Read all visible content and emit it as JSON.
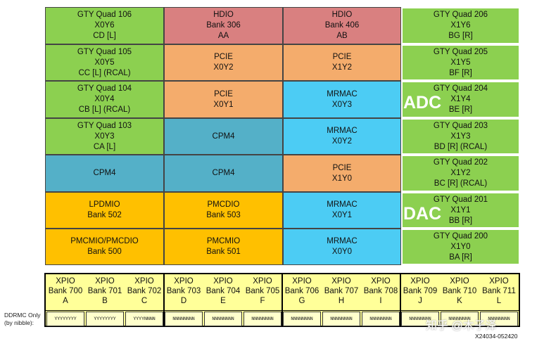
{
  "colors": {
    "gty": "#8cd050",
    "hdio": "#d98080",
    "pcie": "#f4ac6c",
    "mrmac": "#4cccf4",
    "cpm": "#54b0c8",
    "lpdmio": "#ffc000",
    "xpio": "#ffff99"
  },
  "grid": {
    "col0": [
      {
        "lines": [
          "GTY Quad 106",
          "X0Y6",
          "CD [L]"
        ],
        "type": "gty"
      },
      {
        "lines": [
          "GTY Quad 105",
          "X0Y5",
          "CC [L] (RCAL)"
        ],
        "type": "gty"
      },
      {
        "lines": [
          "GTY Quad 104",
          "X0Y4",
          "CB [L] (RCAL)"
        ],
        "type": "gty"
      },
      {
        "lines": [
          "GTY Quad 103",
          "X0Y3",
          "CA [L]"
        ],
        "type": "gty"
      },
      {
        "lines": [
          "CPM4"
        ],
        "type": "cpm"
      },
      {
        "lines": [
          "LPDMIO",
          "Bank 502"
        ],
        "type": "lpdmio"
      },
      {
        "lines": [
          "PMCMIO/PMCDIO",
          "Bank 500"
        ],
        "type": "lpdmio"
      }
    ],
    "col1": [
      {
        "lines": [
          "HDIO",
          "Bank 306",
          "AA"
        ],
        "type": "hdio"
      },
      {
        "lines": [
          "PCIE",
          "X0Y2"
        ],
        "type": "pcie"
      },
      {
        "lines": [
          "PCIE",
          "X0Y1"
        ],
        "type": "pcie"
      },
      {
        "lines": [
          "CPM4"
        ],
        "type": "cpm"
      },
      {
        "lines": [
          "CPM4"
        ],
        "type": "cpm"
      },
      {
        "lines": [
          "PMCDIO",
          "Bank 503"
        ],
        "type": "lpdmio"
      },
      {
        "lines": [
          "PMCMIO",
          "Bank 501"
        ],
        "type": "lpdmio"
      }
    ],
    "col2": [
      {
        "lines": [
          "HDIO",
          "Bank 406",
          "AB"
        ],
        "type": "hdio"
      },
      {
        "lines": [
          "PCIE",
          "X1Y2"
        ],
        "type": "pcie"
      },
      {
        "lines": [
          "MRMAC",
          "X0Y3"
        ],
        "type": "mrmac"
      },
      {
        "lines": [
          "MRMAC",
          "X0Y2"
        ],
        "type": "mrmac"
      },
      {
        "lines": [
          "PCIE",
          "X1Y0"
        ],
        "type": "pcie"
      },
      {
        "lines": [
          "MRMAC",
          "X0Y1"
        ],
        "type": "mrmac"
      },
      {
        "lines": [
          "MRMAC",
          "X0Y0"
        ],
        "type": "mrmac"
      }
    ],
    "col3": [
      {
        "lines": [
          "GTY Quad 206",
          "X1Y6",
          "BG [R]"
        ],
        "type": "gty"
      },
      {
        "lines": [
          "GTY Quad 205",
          "X1Y5",
          "BF [R]"
        ],
        "type": "gty"
      },
      {
        "lines": [
          "GTY Quad 204",
          "X1Y4",
          "BE [R]"
        ],
        "type": "gty"
      },
      {
        "lines": [
          "GTY Quad 203",
          "X1Y3",
          "BD [R] (RCAL)"
        ],
        "type": "gty"
      },
      {
        "lines": [
          "GTY Quad 202",
          "X1Y2",
          "BC [R] (RCAL)"
        ],
        "type": "gty"
      },
      {
        "lines": [
          "GTY Quad 201",
          "X1Y1",
          "BB [R]"
        ],
        "type": "gty"
      },
      {
        "lines": [
          "GTY Quad 200",
          "X1Y0",
          "BA [R]"
        ],
        "type": "gty"
      }
    ]
  },
  "overlays": {
    "adc": "ADC",
    "dac": "DAC"
  },
  "xpio": [
    {
      "t": "XPIO",
      "b": "Bank 700",
      "l": "A"
    },
    {
      "t": "XPIO",
      "b": "Bank 701",
      "l": "B"
    },
    {
      "t": "XPIO",
      "b": "Bank 702",
      "l": "C"
    },
    {
      "t": "XPIO",
      "b": "Bank 703",
      "l": "D"
    },
    {
      "t": "XPIO",
      "b": "Bank 704",
      "l": "E"
    },
    {
      "t": "XPIO",
      "b": "Bank 705",
      "l": "F"
    },
    {
      "t": "XPIO",
      "b": "Bank 706",
      "l": "G"
    },
    {
      "t": "XPIO",
      "b": "Bank 707",
      "l": "H"
    },
    {
      "t": "XPIO",
      "b": "Bank 708",
      "l": "I"
    },
    {
      "t": "XPIO",
      "b": "Bank 709",
      "l": "J"
    },
    {
      "t": "XPIO",
      "b": "Bank 710",
      "l": "K"
    },
    {
      "t": "XPIO",
      "b": "Bank 711",
      "l": "L"
    }
  ],
  "nibbles": [
    "YYYYYYYY",
    "YYYYYYYY",
    "YYYYNNNN",
    "NNNNNNNN",
    "NNNNNNNN",
    "NNNNNNNN",
    "NNNNNNNN",
    "NNNNNNNN",
    "NNNNNNNN",
    "NNNNNNNN",
    "NNNNNNNN",
    "NNNNNNNN"
  ],
  "ddrmc_label": [
    "DDRMC Only",
    "(by nibble):"
  ],
  "watermark": "知乎 @木子泽",
  "figure_code": "X24034-052420"
}
